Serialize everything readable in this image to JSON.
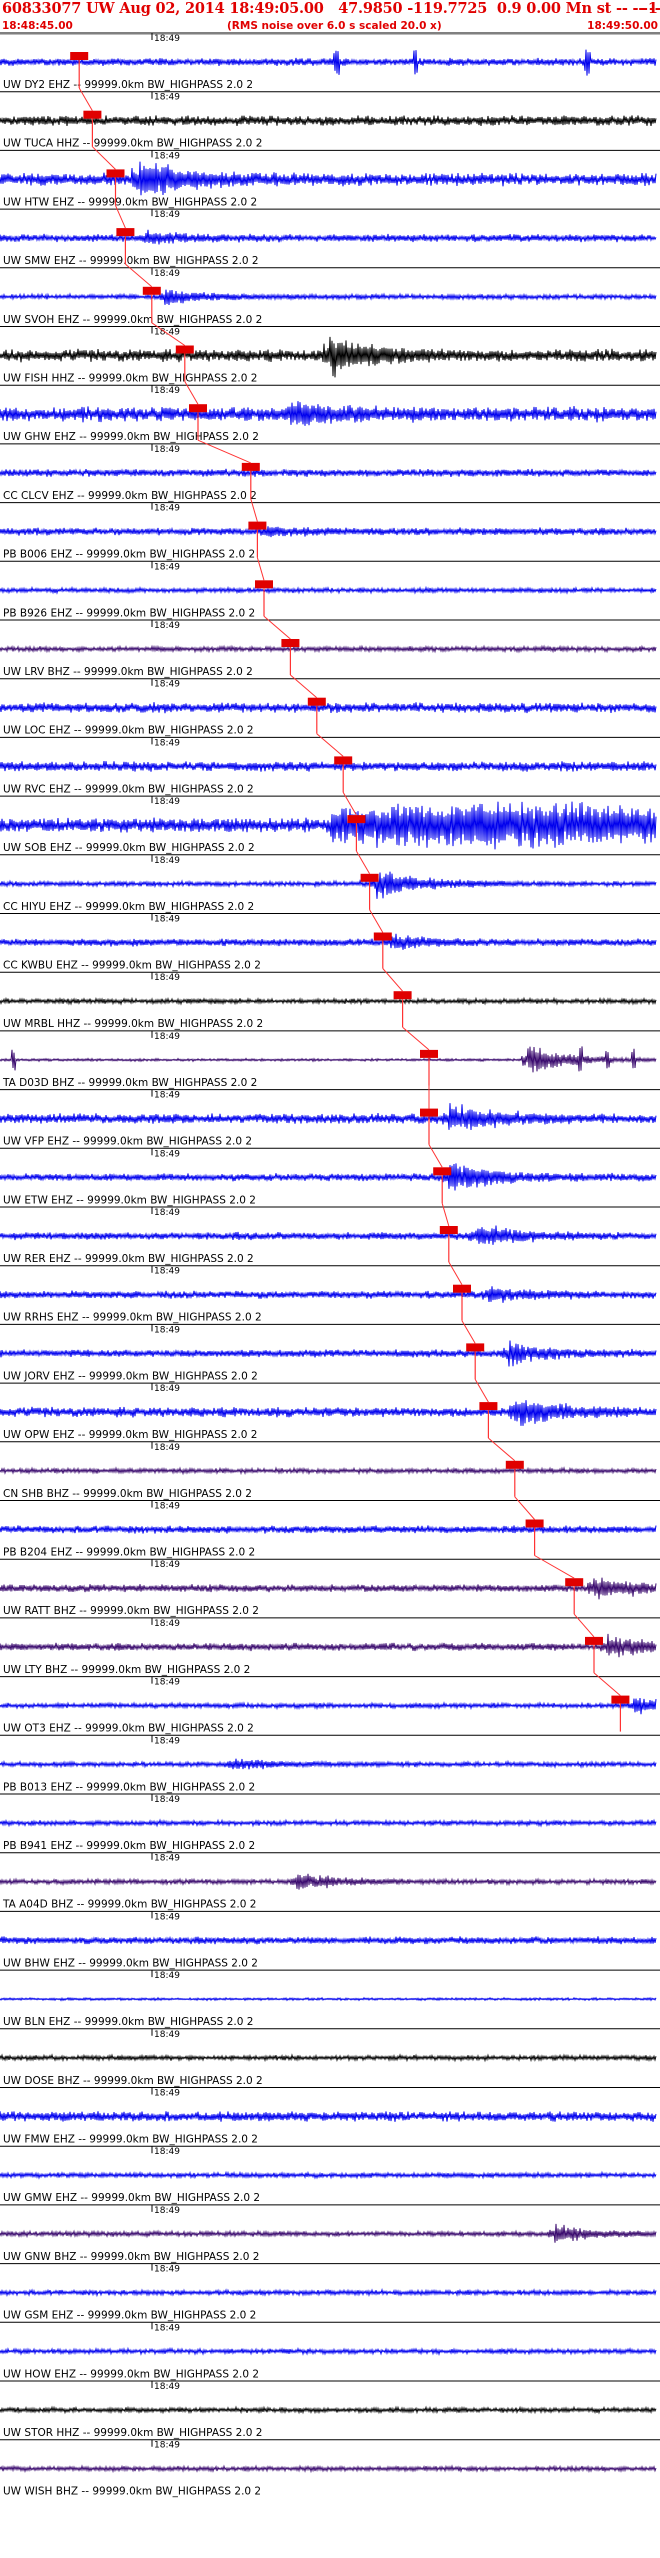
{
  "header": {
    "title": "60833077 UW Aug 02, 2014 18:49:05.00   47.9850 -119.7725  0.9 0.00 Mn st -- -- --",
    "title_right": "-1",
    "start_time": "18:48:45.00",
    "rms_note": "(RMS noise over 6.0 s scaled 20.0 x)",
    "end_time": "18:49:50.00"
  },
  "minute_tick_label": "18:49",
  "colors": {
    "title": "#e00000",
    "pick_marker": "#e00000",
    "pick_line": "#ff3333",
    "trace_blue": "#0000ee",
    "trace_black": "#000000",
    "trace_purple": "#3a0a6e"
  },
  "traces": [
    {
      "label": "UW DY2 EHZ -- 99999.0km BW_HIGHPASS  2.0  2",
      "color": "blue",
      "amp": 3,
      "burst": 0,
      "spikes": true,
      "pick": 0.12
    },
    {
      "label": "UW TUCA HHZ -- 99999.0km BW_HIGHPASS  2.0  2",
      "color": "black",
      "amp": 4,
      "burst": 0,
      "pick": 0.14
    },
    {
      "label": "UW HTW EHZ -- 99999.0km BW_HIGHPASS  2.0  2",
      "color": "blue",
      "amp": 5,
      "burst": 16,
      "burst_at": 0.21,
      "pick": 0.175
    },
    {
      "label": "UW SMW EHZ -- 99999.0km BW_HIGHPASS  2.0  2",
      "color": "blue",
      "amp": 3,
      "burst": 4,
      "burst_at": 0.22,
      "pick": 0.19
    },
    {
      "label": "UW SVOH EHZ -- 99999.0km BW_HIGHPASS  2.0  2",
      "color": "blue",
      "amp": 2,
      "burst": 6,
      "burst_at": 0.25,
      "pick": 0.23
    },
    {
      "label": "UW FISH HHZ -- 99999.0km BW_HIGHPASS  2.0  2",
      "color": "black",
      "amp": 5,
      "burst": 14,
      "burst_at": 0.5,
      "pick": 0.28
    },
    {
      "label": "UW GHW EHZ -- 99999.0km BW_HIGHPASS  2.0  2",
      "color": "blue",
      "amp": 6,
      "burst": 8,
      "burst_at": 0.44,
      "pick": 0.3
    },
    {
      "label": "CC CLCV EHZ -- 99999.0km BW_HIGHPASS  2.0  2",
      "color": "blue",
      "amp": 3,
      "burst": 0,
      "pick": 0.38
    },
    {
      "label": "PB B006 EHZ -- 99999.0km BW_HIGHPASS  2.0  2",
      "color": "blue",
      "amp": 3,
      "burst": 3,
      "burst_at": 0.4,
      "pick": 0.39
    },
    {
      "label": "PB B926 EHZ -- 99999.0km BW_HIGHPASS  2.0  2",
      "color": "blue",
      "amp": 2,
      "burst": 0,
      "pick": 0.4
    },
    {
      "label": "UW LRV BHZ -- 99999.0km BW_HIGHPASS  2.0  2",
      "color": "purple",
      "amp": 2,
      "burst": 0,
      "pick": 0.44
    },
    {
      "label": "UW LOC EHZ -- 99999.0km BW_HIGHPASS  2.0  2",
      "color": "blue",
      "amp": 4,
      "burst": 0,
      "pick": 0.48
    },
    {
      "label": "UW RVC EHZ -- 99999.0km BW_HIGHPASS  2.0  2",
      "color": "blue",
      "amp": 4,
      "burst": 0,
      "pick": 0.52
    },
    {
      "label": "UW SOB EHZ -- 99999.0km BW_HIGHPASS  2.0  2",
      "color": "blue",
      "amp": 6,
      "burst": 14,
      "burst_at": 0.75,
      "wide": true,
      "pick": 0.54
    },
    {
      "label": "CC HIYU EHZ -- 99999.0km BW_HIGHPASS  2.0  2",
      "color": "blue",
      "amp": 2,
      "burst": 12,
      "burst_at": 0.57,
      "pick": 0.56
    },
    {
      "label": "CC KWBU EHZ -- 99999.0km BW_HIGHPASS  2.0  2",
      "color": "blue",
      "amp": 3,
      "burst": 5,
      "burst_at": 0.59,
      "pick": 0.58
    },
    {
      "label": "UW MRBL HHZ -- 99999.0km BW_HIGHPASS  2.0  2",
      "color": "black",
      "amp": 2,
      "burst": 0,
      "pick": 0.61
    },
    {
      "label": "TA D03D BHZ -- 99999.0km BW_HIGHPASS  2.0  2",
      "color": "purple",
      "amp": 1,
      "burst": 12,
      "burst_at": 0.8,
      "spikes2": true,
      "pick": 0.65
    },
    {
      "label": "UW VFP EHZ -- 99999.0km BW_HIGHPASS  2.0  2",
      "color": "blue",
      "amp": 4,
      "burst": 10,
      "burst_at": 0.68,
      "pick": 0.65
    },
    {
      "label": "UW ETW EHZ -- 99999.0km BW_HIGHPASS  2.0  2",
      "color": "blue",
      "amp": 3,
      "burst": 12,
      "burst_at": 0.68,
      "pick": 0.67
    },
    {
      "label": "UW RER EHZ -- 99999.0km BW_HIGHPASS  2.0  2",
      "color": "blue",
      "amp": 3,
      "burst": 8,
      "burst_at": 0.72,
      "pick": 0.68
    },
    {
      "label": "UW RRHS EHZ -- 99999.0km BW_HIGHPASS  2.0  2",
      "color": "blue",
      "amp": 3,
      "burst": 5,
      "burst_at": 0.74,
      "pick": 0.7
    },
    {
      "label": "UW JORV EHZ -- 99999.0km BW_HIGHPASS  2.0  2",
      "color": "blue",
      "amp": 3,
      "burst": 8,
      "burst_at": 0.77,
      "pick": 0.72
    },
    {
      "label": "UW OPW EHZ -- 99999.0km BW_HIGHPASS  2.0  2",
      "color": "blue",
      "amp": 4,
      "burst": 10,
      "burst_at": 0.78,
      "pick": 0.74
    },
    {
      "label": "CN SHB BHZ -- 99999.0km BW_HIGHPASS  2.0  2",
      "color": "purple",
      "amp": 2,
      "burst": 0,
      "pick": 0.78
    },
    {
      "label": "PB B204 EHZ -- 99999.0km BW_HIGHPASS  2.0  2",
      "color": "blue",
      "amp": 3,
      "burst": 0,
      "pick": 0.81
    },
    {
      "label": "UW RATT BHZ -- 99999.0km BW_HIGHPASS  2.0  2",
      "color": "purple",
      "amp": 3,
      "burst": 8,
      "burst_at": 0.9,
      "pick": 0.87
    },
    {
      "label": "UW LTY BHZ -- 99999.0km BW_HIGHPASS  2.0  2",
      "color": "purple",
      "amp": 3,
      "burst": 8,
      "burst_at": 0.92,
      "pick": 0.9
    },
    {
      "label": "UW OT3 EHZ -- 99999.0km BW_HIGHPASS  2.0  2",
      "color": "blue",
      "amp": 2,
      "burst": 6,
      "burst_at": 0.96,
      "pick": 0.94
    },
    {
      "label": "PB B013 EHZ -- 99999.0km BW_HIGHPASS  2.0  2",
      "color": "blue",
      "amp": 2,
      "burst": 4,
      "burst_at": 0.35
    },
    {
      "label": "PB B941 EHZ -- 99999.0km BW_HIGHPASS  2.0  2",
      "color": "blue",
      "amp": 2,
      "burst": 0
    },
    {
      "label": "TA A04D BHZ -- 99999.0km BW_HIGHPASS  2.0  2",
      "color": "purple",
      "amp": 2,
      "burst": 6,
      "burst_at": 0.45
    },
    {
      "label": "UW BHW EHZ -- 99999.0km BW_HIGHPASS  2.0  2",
      "color": "blue",
      "amp": 3,
      "burst": 0
    },
    {
      "label": "UW BLN EHZ -- 99999.0km BW_HIGHPASS  2.0  2",
      "color": "blue",
      "amp": 1,
      "burst": 0
    },
    {
      "label": "UW DOSE BHZ -- 99999.0km BW_HIGHPASS  2.0  2",
      "color": "black",
      "amp": 2,
      "burst": 0
    },
    {
      "label": "UW FMW EHZ -- 99999.0km BW_HIGHPASS  2.0  2",
      "color": "blue",
      "amp": 4,
      "burst": 0
    },
    {
      "label": "UW GMW EHZ -- 99999.0km BW_HIGHPASS  2.0  2",
      "color": "blue",
      "amp": 2,
      "burst": 0
    },
    {
      "label": "UW GNW BHZ -- 99999.0km BW_HIGHPASS  2.0  2",
      "color": "purple",
      "amp": 2,
      "burst": 6,
      "burst_at": 0.84
    },
    {
      "label": "UW GSM EHZ -- 99999.0km BW_HIGHPASS  2.0  2",
      "color": "blue",
      "amp": 2,
      "burst": 0
    },
    {
      "label": "UW HOW EHZ -- 99999.0km BW_HIGHPASS  2.0  2",
      "color": "blue",
      "amp": 2,
      "burst": 0
    },
    {
      "label": "UW STOR HHZ -- 99999.0km BW_HIGHPASS  2.0  2",
      "color": "black",
      "amp": 2,
      "burst": 0
    },
    {
      "label": "UW WISH BHZ -- 99999.0km BW_HIGHPASS  2.0  2",
      "color": "purple",
      "amp": 2,
      "burst": 0
    }
  ]
}
